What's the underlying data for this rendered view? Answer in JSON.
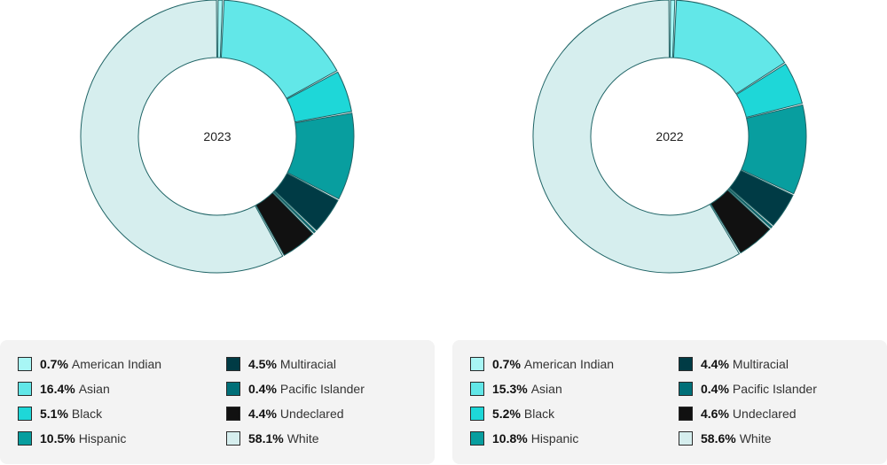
{
  "chart_data": [
    {
      "type": "pie",
      "title": "2023",
      "categories": [
        "American Indian",
        "Asian",
        "Black",
        "Hispanic",
        "Multiracial",
        "Pacific Islander",
        "Undeclared",
        "White"
      ],
      "values": [
        0.7,
        16.4,
        5.1,
        10.5,
        4.5,
        0.4,
        4.4,
        58.1
      ],
      "value_labels": [
        "0.7%",
        "16.4%",
        "5.1%",
        "10.5%",
        "4.5%",
        "0.4%",
        "4.4%",
        "58.1%"
      ]
    },
    {
      "type": "pie",
      "title": "2022",
      "categories": [
        "American Indian",
        "Asian",
        "Black",
        "Hispanic",
        "Multiracial",
        "Pacific Islander",
        "Undeclared",
        "White"
      ],
      "values": [
        0.7,
        15.3,
        5.2,
        10.8,
        4.4,
        0.4,
        4.6,
        58.6
      ],
      "value_labels": [
        "0.7%",
        "15.3%",
        "5.2%",
        "10.8%",
        "4.4%",
        "0.4%",
        "4.6%",
        "58.6%"
      ]
    }
  ],
  "colors": [
    "#a8f6f5",
    "#62e7e8",
    "#1ed7d8",
    "#089e9f",
    "#003b45",
    "#006f78",
    "#111111",
    "#d6eeee"
  ],
  "style": {
    "donut_hole": "#ffffff",
    "slice_stroke": "#1f6466"
  }
}
